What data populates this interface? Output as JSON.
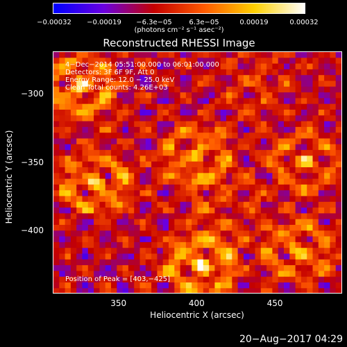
{
  "chart_data": {
    "type": "heatmap",
    "title": "Reconstructed RHESSI Image",
    "xlabel": "Heliocentric X (arcsec)",
    "ylabel": "Heliocentric Y (arcsec)",
    "xlim": [
      308,
      493
    ],
    "ylim": [
      -446,
      -269
    ],
    "x_ticks": [
      350,
      400,
      450
    ],
    "y_ticks": [
      -300,
      -350,
      -400
    ],
    "x_tick_labels": [
      "350",
      "400",
      "450"
    ],
    "y_tick_labels": [
      "−300",
      "−350",
      "−400"
    ],
    "colorbar": {
      "range": [
        -0.00032,
        0.00032
      ],
      "tick_labels": [
        "−0.00032",
        "−0.00019",
        "−6.3e−05",
        "6.3e−05",
        "0.00019",
        "0.00032"
      ],
      "units": "(photons cm⁻² s⁻¹ asec⁻²)",
      "colors": [
        "#0000ff",
        "#6a00e0",
        "#c40000",
        "#ff5a00",
        "#ffd000",
        "#ffffff"
      ]
    },
    "annotations": {
      "time_range": "4−Dec−2014 05:51:00.000 to 06:01:00.000",
      "detectors": "Detectors: 3F 6F 9F, Att 0",
      "energy": "Energy Range: 12.0 − 25.0 keV",
      "clean": "Clean    Total counts: 4.26E+03",
      "peak": "Position of Peak = [403,−425]"
    },
    "peak_position": [
      403,
      -425
    ],
    "bright_sources": [
      {
        "x": 325,
        "y": -295,
        "amp": 0.9
      },
      {
        "x": 403,
        "y": -425,
        "amp": 1.0
      },
      {
        "x": 335,
        "y": -365,
        "amp": 0.85
      },
      {
        "x": 400,
        "y": -345,
        "amp": 0.8
      },
      {
        "x": 470,
        "y": -350,
        "amp": 0.6
      },
      {
        "x": 465,
        "y": -415,
        "amp": 0.75
      },
      {
        "x": 440,
        "y": -290,
        "amp": 0.35
      },
      {
        "x": 420,
        "y": -380,
        "amp": 0.3
      }
    ]
  },
  "timestamp": "20−Aug−2017 04:29"
}
